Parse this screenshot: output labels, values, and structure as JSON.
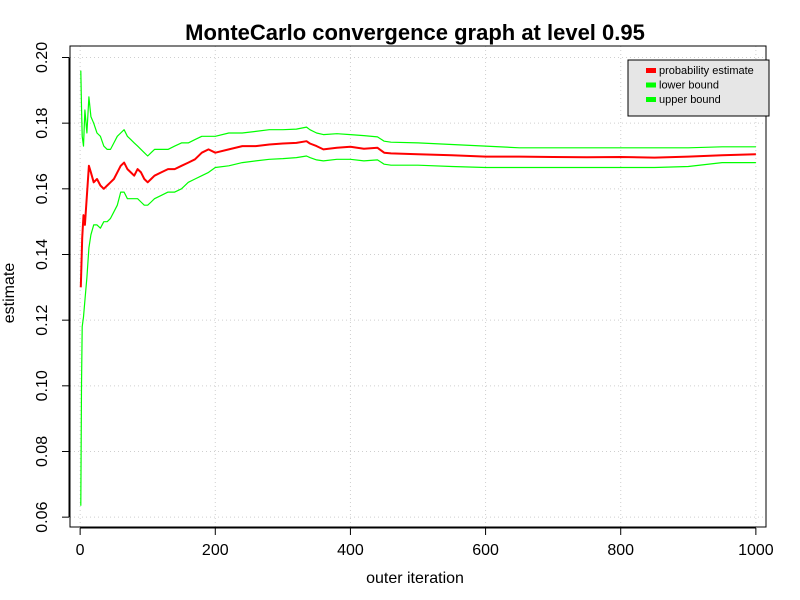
{
  "chart_data": {
    "type": "line",
    "title": "MonteCarlo convergence graph at level 0.95",
    "xlabel": "outer iteration",
    "ylabel": "estimate",
    "xlim": [
      -15,
      1015
    ],
    "ylim": [
      0.057,
      0.2035
    ],
    "x_ticks": [
      0,
      200,
      400,
      600,
      800,
      1000
    ],
    "y_ticks": [
      0.06,
      0.08,
      0.1,
      0.12,
      0.14,
      0.16,
      0.18,
      0.2
    ],
    "x_tick_labels": [
      "0",
      "200",
      "400",
      "600",
      "800",
      "1000"
    ],
    "y_tick_labels": [
      "0.06",
      "0.08",
      "0.10",
      "0.12",
      "0.14",
      "0.16",
      "0.18",
      "0.20"
    ],
    "grid": true,
    "legend_position": "top-right",
    "series": [
      {
        "name": "probability estimate",
        "color": "#ff0000",
        "x": [
          1,
          3,
          5,
          7,
          10,
          13,
          16,
          20,
          25,
          30,
          35,
          40,
          45,
          50,
          55,
          60,
          65,
          70,
          75,
          80,
          85,
          90,
          95,
          100,
          105,
          110,
          120,
          130,
          140,
          150,
          160,
          170,
          180,
          190,
          200,
          220,
          240,
          260,
          280,
          300,
          320,
          335,
          340,
          350,
          360,
          380,
          400,
          420,
          440,
          450,
          460,
          500,
          550,
          600,
          650,
          700,
          750,
          800,
          850,
          900,
          950,
          1000
        ],
        "y": [
          0.13,
          0.145,
          0.152,
          0.149,
          0.158,
          0.167,
          0.165,
          0.162,
          0.163,
          0.161,
          0.16,
          0.161,
          0.162,
          0.163,
          0.165,
          0.167,
          0.168,
          0.166,
          0.165,
          0.164,
          0.166,
          0.165,
          0.163,
          0.162,
          0.163,
          0.164,
          0.165,
          0.166,
          0.166,
          0.167,
          0.168,
          0.169,
          0.171,
          0.172,
          0.171,
          0.172,
          0.173,
          0.173,
          0.1735,
          0.1738,
          0.174,
          0.1745,
          0.1738,
          0.173,
          0.172,
          0.1725,
          0.1728,
          0.1722,
          0.1725,
          0.171,
          0.1708,
          0.1705,
          0.1702,
          0.1698,
          0.1698,
          0.1697,
          0.1696,
          0.1697,
          0.1695,
          0.1698,
          0.1702,
          0.1705
        ]
      },
      {
        "name": "lower bound",
        "color": "#00ff00",
        "x": [
          1,
          2,
          3,
          5,
          7,
          10,
          13,
          16,
          20,
          25,
          30,
          35,
          40,
          45,
          50,
          55,
          60,
          65,
          70,
          75,
          80,
          85,
          90,
          95,
          100,
          105,
          110,
          120,
          130,
          140,
          150,
          160,
          170,
          180,
          190,
          200,
          220,
          240,
          260,
          280,
          300,
          320,
          335,
          340,
          350,
          360,
          380,
          400,
          420,
          440,
          450,
          460,
          500,
          550,
          600,
          650,
          700,
          750,
          800,
          850,
          900,
          950,
          1000
        ],
        "y": [
          0.0635,
          0.1,
          0.118,
          0.121,
          0.126,
          0.133,
          0.142,
          0.146,
          0.149,
          0.149,
          0.148,
          0.15,
          0.15,
          0.151,
          0.153,
          0.155,
          0.159,
          0.159,
          0.157,
          0.157,
          0.157,
          0.157,
          0.156,
          0.155,
          0.155,
          0.156,
          0.157,
          0.158,
          0.159,
          0.159,
          0.16,
          0.162,
          0.163,
          0.164,
          0.165,
          0.1665,
          0.167,
          0.168,
          0.1685,
          0.169,
          0.1692,
          0.1695,
          0.17,
          0.1695,
          0.1688,
          0.1685,
          0.169,
          0.169,
          0.1685,
          0.1688,
          0.1675,
          0.1672,
          0.1672,
          0.1668,
          0.1665,
          0.1665,
          0.1665,
          0.1665,
          0.1665,
          0.1665,
          0.1668,
          0.168,
          0.168
        ]
      },
      {
        "name": "upper bound",
        "color": "#00ff00",
        "x": [
          1,
          2,
          3,
          5,
          7,
          10,
          13,
          16,
          20,
          25,
          30,
          35,
          40,
          45,
          50,
          55,
          60,
          65,
          70,
          75,
          80,
          85,
          90,
          95,
          100,
          105,
          110,
          120,
          130,
          140,
          150,
          160,
          170,
          180,
          190,
          200,
          220,
          240,
          260,
          280,
          300,
          320,
          335,
          340,
          350,
          360,
          380,
          400,
          420,
          440,
          450,
          460,
          500,
          550,
          600,
          650,
          700,
          750,
          800,
          850,
          900,
          950,
          1000
        ],
        "y": [
          0.196,
          0.185,
          0.176,
          0.173,
          0.184,
          0.177,
          0.188,
          0.182,
          0.18,
          0.177,
          0.176,
          0.173,
          0.172,
          0.172,
          0.174,
          0.176,
          0.177,
          0.178,
          0.176,
          0.175,
          0.174,
          0.173,
          0.172,
          0.171,
          0.17,
          0.171,
          0.172,
          0.172,
          0.172,
          0.173,
          0.174,
          0.174,
          0.175,
          0.176,
          0.176,
          0.176,
          0.177,
          0.177,
          0.1775,
          0.178,
          0.178,
          0.1782,
          0.1788,
          0.178,
          0.177,
          0.1765,
          0.1768,
          0.1765,
          0.1762,
          0.1758,
          0.1745,
          0.1742,
          0.174,
          0.1735,
          0.173,
          0.1725,
          0.1725,
          0.1725,
          0.1725,
          0.1725,
          0.1725,
          0.1728,
          0.1728
        ]
      }
    ]
  }
}
